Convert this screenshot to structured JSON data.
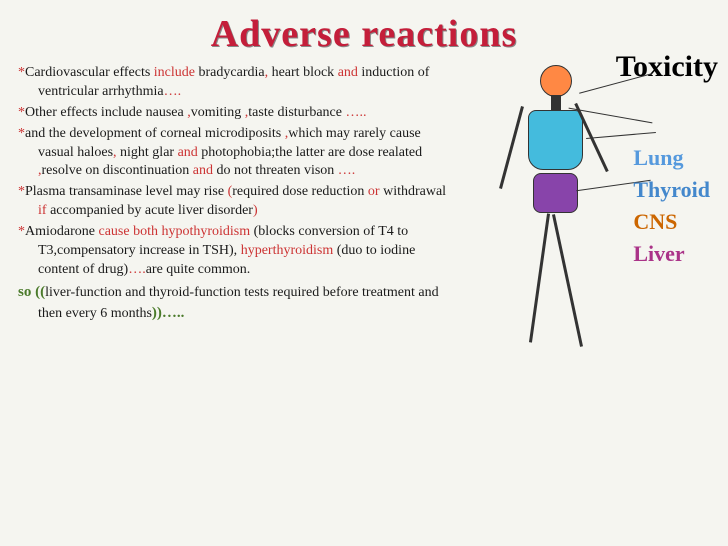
{
  "title": "Adverse reactions",
  "bullets": [
    {
      "pre": "*",
      "t1": "Cardiovascular effects ",
      "r1": "include ",
      "t2": "bradycardia",
      "r2": ", ",
      "t3": "heart block ",
      "r3": "and ",
      "t4": "induction of ventricular arrhythmia",
      "r4": "…."
    },
    {
      "pre": "*",
      "t1": "Other effects include nausea ",
      "r1": ",",
      "t2": "vomiting ",
      "r2": ",",
      "t3": "taste disturbance ",
      "r3": "….."
    },
    {
      "pre": "*",
      "t1": "and the development of corneal microdiposits ",
      "r1": ",",
      "t2": "which may rarely cause vasual haloes",
      "r2": ", ",
      "t3": "night glar ",
      "r3": "and ",
      "t4": "photophobia;the latter are dose realated ",
      "r4": ",",
      "t5": "resolve on discontinuation ",
      "r5": "and ",
      "t6": "do not threaten vison ",
      "r6": "…."
    },
    {
      "pre": "*",
      "t1": "Plasma transaminase level may rise ",
      "r1": "(",
      "t2": "required dose reduction ",
      "r2": "or ",
      "t3": "withdrawal ",
      "r3": "if ",
      "t4": "accompanied by acute liver disorder",
      "r4": ")"
    },
    {
      "pre": "*",
      "t1": "Amiodarone ",
      "r1": "cause both ",
      "rt1": "hypothyroidism ",
      "t2": "(blocks conversion of T4 to T3,compensatory increase in TSH), ",
      "rt2": "hyperthyroidism ",
      "t3": "(duo to iodine content of drug)",
      "r2": "….",
      "t4": "are quite common."
    }
  ],
  "conclusion": {
    "so": "so ((",
    "body": "liver-function and thyroid-function tests required before treatment and then every 6 months",
    "end": "))….."
  },
  "toxicity_title": "Toxicity",
  "organs": [
    {
      "label": "Lung",
      "class": "lung"
    },
    {
      "label": "Thyroid",
      "class": "thyroid"
    },
    {
      "label": "CNS",
      "class": "cns"
    },
    {
      "label": "Liver",
      "class": "liver"
    }
  ],
  "colors": {
    "title": "#c41e3a",
    "accent": "#cc3333",
    "green": "#4a7a2a",
    "lung": "#5599dd",
    "thyroid": "#4488cc",
    "cns": "#cc6600",
    "liver": "#aa3388",
    "head": "#ff8844",
    "torso": "#44bbdd",
    "abdomen": "#8844aa"
  }
}
